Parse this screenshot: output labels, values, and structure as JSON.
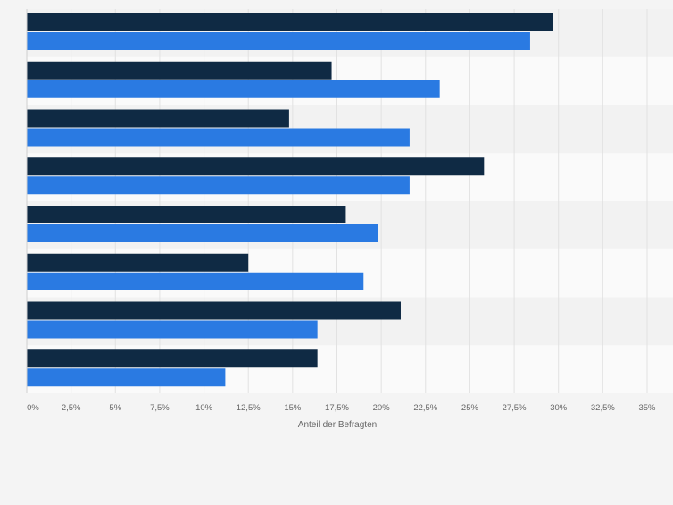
{
  "chart_data": {
    "type": "bar",
    "orientation": "horizontal",
    "categories": [
      "",
      "",
      "",
      "",
      "",
      "",
      "",
      ""
    ],
    "series": [
      {
        "color": "#0f2a44",
        "values": [
          29.7,
          17.2,
          14.8,
          25.8,
          18.0,
          12.5,
          21.1,
          16.4
        ]
      },
      {
        "color": "#2a7ae2",
        "values": [
          28.4,
          23.3,
          21.6,
          21.6,
          19.8,
          19.0,
          16.4,
          11.2
        ]
      }
    ],
    "xlim": [
      0,
      35
    ],
    "xticks": [
      "0%",
      "2,5%",
      "5%",
      "7,5%",
      "10%",
      "12,5%",
      "15%",
      "17,5%",
      "20%",
      "22,5%",
      "25%",
      "27,5%",
      "30%",
      "32,5%",
      "35%"
    ],
    "xlabel": "Anteil der Befragten",
    "ylabel": "",
    "title": "",
    "grid": true,
    "legend": "none"
  }
}
